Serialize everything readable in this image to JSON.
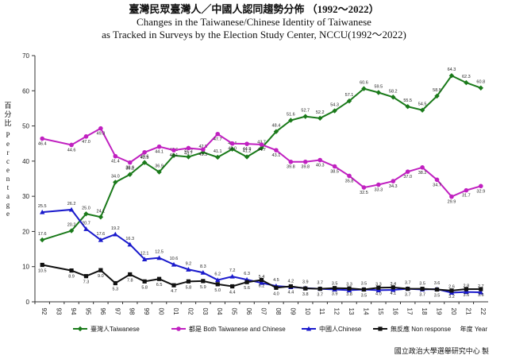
{
  "header": {
    "title_zh": "臺灣民眾臺灣人／中國人認同趨勢分佈 （1992～2022）",
    "title_en_line1": "Changes in the Taiwanese/Chinese Identity of Taiwanese",
    "title_en_line2": "as Tracked in Surveys by the Election Study Center, NCCU(1992～2022)"
  },
  "ylabel": {
    "zh": [
      "百",
      "分",
      "比"
    ],
    "en": [
      "P",
      "e",
      "r",
      "c",
      "e",
      "n",
      "t",
      "a",
      "g",
      "e"
    ]
  },
  "xunit": "年度 Year",
  "source": "國立政治大學選舉研究中心 製",
  "chart_data": {
    "type": "line",
    "title": "Changes in the Taiwanese/Chinese Identity of Taiwanese",
    "xlabel": "年度 Year",
    "ylabel": "百分比 Percentage",
    "ylim": [
      0,
      70
    ],
    "yticks": [
      0,
      10,
      20,
      30,
      40,
      50,
      60,
      70
    ],
    "grid": false,
    "legend_position": "bottom",
    "categories": [
      "92",
      "93",
      "94",
      "95",
      "96",
      "97",
      "98",
      "99",
      "00",
      "01",
      "02",
      "03",
      "04",
      "05",
      "06",
      "07",
      "08",
      "09",
      "10",
      "11",
      "12",
      "13",
      "14",
      "15",
      "16",
      "17",
      "18",
      "19",
      "20",
      "21",
      "22"
    ],
    "series": [
      {
        "name": "臺灣人Taiwanese",
        "color": "#1a7a1a",
        "marker": "diamond",
        "x": [
          0,
          2,
          3,
          4,
          5,
          6,
          7,
          8,
          9,
          10,
          11,
          12,
          13,
          14,
          15,
          16,
          17,
          18,
          19,
          20,
          21,
          22,
          23,
          24,
          25,
          26,
          27,
          28,
          29,
          30
        ],
        "values": [
          17.6,
          20.2,
          25.0,
          24.1,
          34.0,
          36.2,
          39.6,
          36.9,
          41.6,
          41.2,
          42.5,
          41.1,
          43.4,
          41.2,
          43.7,
          48.4,
          51.6,
          52.7,
          52.2,
          54.3,
          57.1,
          60.6,
          59.5,
          58.2,
          55.5,
          54.5,
          58.5,
          64.3,
          62.3,
          60.8
        ]
      },
      {
        "name": "都是 Both Taiwanese and Chinese",
        "color": "#c020c0",
        "marker": "circle",
        "x": [
          0,
          2,
          3,
          4,
          5,
          6,
          7,
          8,
          9,
          10,
          11,
          12,
          13,
          14,
          15,
          16,
          17,
          18,
          19,
          20,
          21,
          22,
          23,
          24,
          25,
          26,
          27,
          28,
          29,
          30
        ],
        "values": [
          46.4,
          44.6,
          47.0,
          49.3,
          41.4,
          39.6,
          42.5,
          44.1,
          43.1,
          43.7,
          43.3,
          47.7,
          45.0,
          44.9,
          44.7,
          43.1,
          39.8,
          39.8,
          40.3,
          38.5,
          35.8,
          32.5,
          33.3,
          34.3,
          37.0,
          38.2,
          34.7,
          29.9,
          31.7,
          32.9
        ]
      },
      {
        "name": "中國人Chinese",
        "color": "#1a1acc",
        "marker": "triangle",
        "x": [
          0,
          2,
          3,
          4,
          5,
          6,
          7,
          8,
          9,
          10,
          11,
          12,
          13,
          14,
          15,
          16,
          17,
          18,
          19,
          20,
          21,
          22,
          23,
          24,
          25,
          26,
          27,
          28,
          29,
          30
        ],
        "values": [
          25.5,
          26.2,
          20.7,
          17.6,
          19.2,
          16.3,
          12.1,
          12.5,
          10.6,
          9.2,
          8.3,
          6.2,
          7.2,
          6.3,
          5.4,
          4.5,
          4.2,
          3.9,
          3.7,
          3.5,
          3.3,
          3.5,
          3.3,
          3.4,
          3.7,
          3.5,
          3.6,
          2.6,
          2.8,
          2.7
        ]
      },
      {
        "name": "無反應 Non response",
        "color": "#111111",
        "marker": "square",
        "x": [
          0,
          2,
          3,
          4,
          5,
          6,
          7,
          8,
          9,
          10,
          11,
          12,
          13,
          14,
          15,
          16,
          17,
          18,
          19,
          20,
          21,
          22,
          23,
          24,
          25,
          26,
          27,
          28,
          29,
          30
        ],
        "values": [
          10.5,
          8.9,
          7.3,
          9.0,
          5.3,
          7.8,
          5.8,
          6.5,
          4.7,
          5.8,
          5.9,
          5.0,
          4.4,
          5.6,
          6.2,
          4.0,
          4.4,
          3.8,
          3.7,
          3.9,
          3.8,
          3.5,
          4.0,
          4.1,
          3.7,
          3.7,
          3.5,
          3.2,
          3.6,
          3.6
        ]
      }
    ]
  }
}
